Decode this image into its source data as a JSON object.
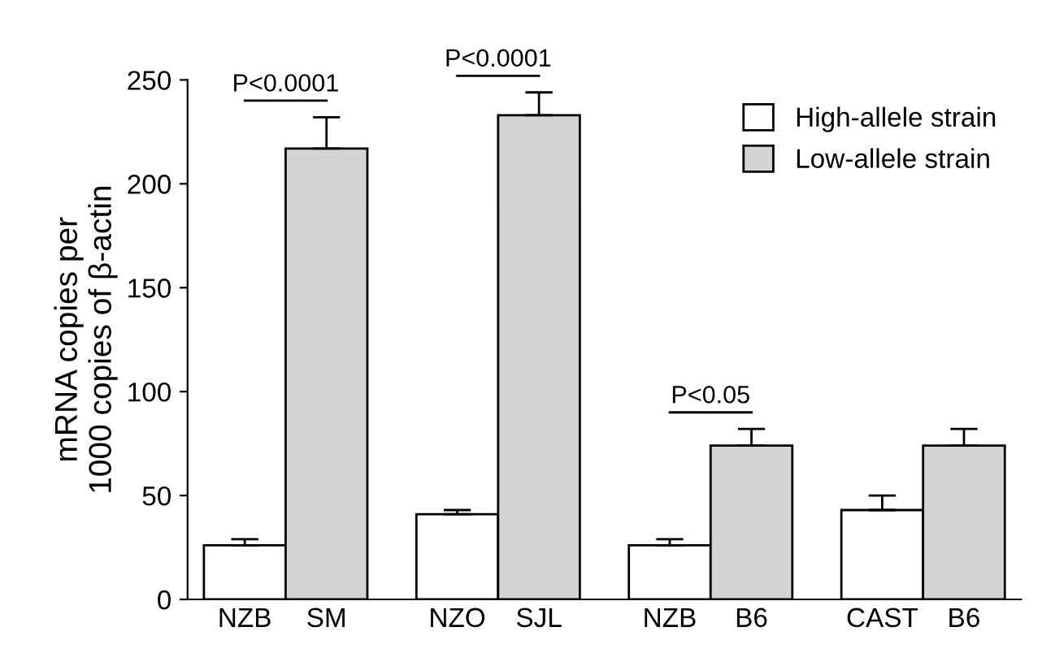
{
  "chart_data": {
    "type": "bar",
    "ylabel": "mRNA copies per\n1000 copies of β-actin",
    "categories": [
      "NZB",
      "SM",
      "NZO",
      "SJL",
      "NZB",
      "B6",
      "CAST",
      "B6"
    ],
    "series": [
      {
        "name": "High-allele strain",
        "color": "#ffffff",
        "values": [
          26,
          null,
          41,
          null,
          26,
          null,
          43,
          null
        ],
        "errors": [
          3,
          null,
          2,
          null,
          3,
          null,
          7,
          null
        ]
      },
      {
        "name": "Low-allele strain",
        "color": "#d4d4d4",
        "values": [
          null,
          217,
          null,
          233,
          null,
          74,
          null,
          74
        ],
        "errors": [
          null,
          15,
          null,
          11,
          null,
          8,
          null,
          8
        ]
      }
    ],
    "ylim": [
      0,
      250
    ],
    "yticks": [
      0,
      50,
      100,
      150,
      200,
      250
    ],
    "grid": false,
    "legend": "top right",
    "annotations": [
      "P<0.0001",
      "P<0.0001",
      "P<0.05"
    ]
  }
}
